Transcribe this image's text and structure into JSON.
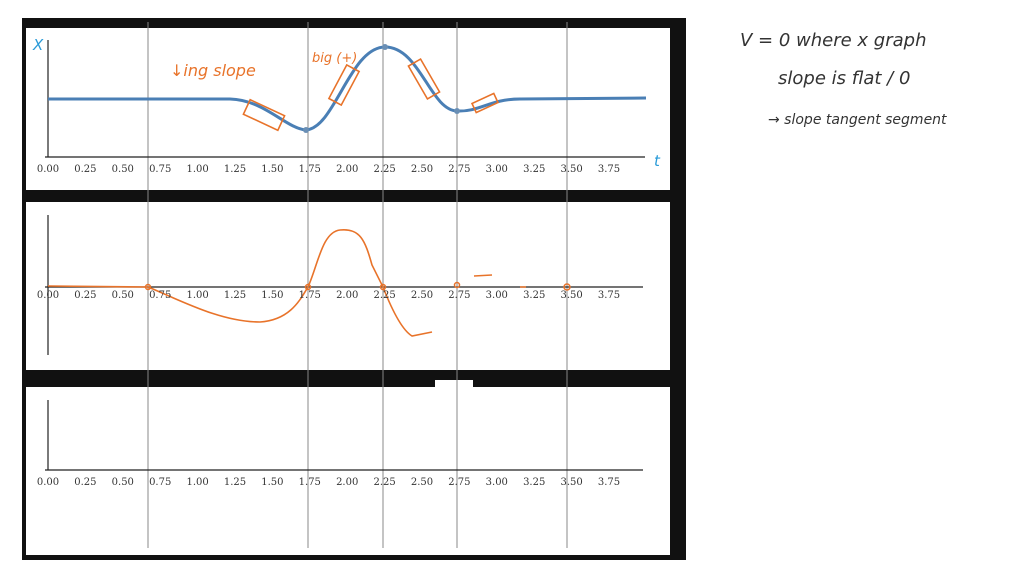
{
  "axis": {
    "tick_labels": [
      "0.00",
      "0.25",
      "0.50",
      "0.75",
      "1.00",
      "1.25",
      "1.50",
      "1.75",
      "2.00",
      "2.25",
      "2.50",
      "2.75",
      "3.00",
      "3.25",
      "3.50",
      "3.75"
    ],
    "y_label": "X",
    "x_label": "t"
  },
  "annotations": {
    "decreasing": "↓ing slope",
    "big": "big (+)"
  },
  "notes": [
    "V = 0 where x graph",
    "slope is flat / 0",
    "→ slope tangent segment"
  ]
}
